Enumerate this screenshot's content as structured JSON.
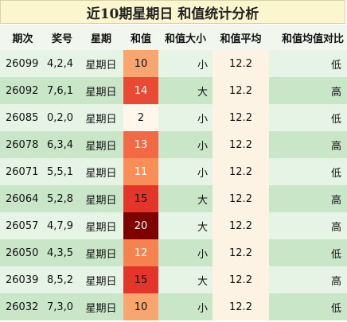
{
  "title": "近10期星期日 和值统计分析",
  "headers": [
    "期次",
    "奖号",
    "星期",
    "和值",
    "和值大小",
    "和值平均",
    "和值均值对比"
  ],
  "rows": [
    {
      "period": "26099",
      "nums": "4,2,4",
      "weekday": "星期日",
      "sum": "10",
      "size": "小",
      "avg": "12.2",
      "cmp": "低",
      "sum_color": "#f8a570",
      "sum_text_color": "#111111"
    },
    {
      "period": "26092",
      "nums": "7,6,1",
      "weekday": "星期日",
      "sum": "14",
      "size": "大",
      "avg": "12.2",
      "cmp": "高",
      "sum_color": "#e84a33",
      "sum_text_color": "#ffffff"
    },
    {
      "period": "26085",
      "nums": "0,2,0",
      "weekday": "星期日",
      "sum": "2",
      "size": "小",
      "avg": "12.2",
      "cmp": "低",
      "sum_color": "#fff7ec",
      "sum_text_color": "#111111"
    },
    {
      "period": "26078",
      "nums": "6,3,4",
      "weekday": "星期日",
      "sum": "13",
      "size": "小",
      "avg": "12.2",
      "cmp": "高",
      "sum_color": "#f26a45",
      "sum_text_color": "#ffffff"
    },
    {
      "period": "26071",
      "nums": "5,5,1",
      "weekday": "星期日",
      "sum": "11",
      "size": "小",
      "avg": "12.2",
      "cmp": "低",
      "sum_color": "#f98e57",
      "sum_text_color": "#ffffff"
    },
    {
      "period": "26064",
      "nums": "5,2,8",
      "weekday": "星期日",
      "sum": "15",
      "size": "大",
      "avg": "12.2",
      "cmp": "高",
      "sum_color": "#e3352a",
      "sum_text_color": "#111111"
    },
    {
      "period": "26057",
      "nums": "4,7,9",
      "weekday": "星期日",
      "sum": "20",
      "size": "大",
      "avg": "12.2",
      "cmp": "高",
      "sum_color": "#7f0000",
      "sum_text_color": "#ffffff"
    },
    {
      "period": "26050",
      "nums": "4,3,5",
      "weekday": "星期日",
      "sum": "12",
      "size": "小",
      "avg": "12.2",
      "cmp": "低",
      "sum_color": "#f6824f",
      "sum_text_color": "#ffffff"
    },
    {
      "period": "26039",
      "nums": "8,5,2",
      "weekday": "星期日",
      "sum": "15",
      "size": "大",
      "avg": "12.2",
      "cmp": "高",
      "sum_color": "#e3352a",
      "sum_text_color": "#111111"
    },
    {
      "period": "26032",
      "nums": "7,3,0",
      "weekday": "星期日",
      "sum": "10",
      "size": "小",
      "avg": "12.2",
      "cmp": "低",
      "sum_color": "#f8a570",
      "sum_text_color": "#111111"
    }
  ]
}
